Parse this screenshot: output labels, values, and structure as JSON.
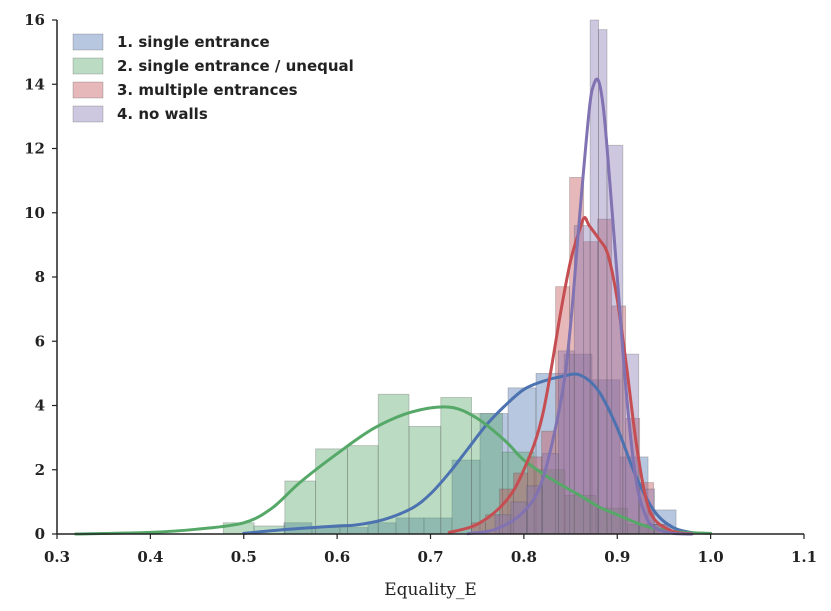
{
  "chart_data": {
    "type": "histogram+kde",
    "xlabel": "Equality_E",
    "ylabel": "",
    "xlim": [
      0.3,
      1.1
    ],
    "ylim": [
      0,
      16
    ],
    "xticks": [
      0.3,
      0.4,
      0.5,
      0.6,
      0.7,
      0.8,
      0.9,
      1.0,
      1.1
    ],
    "xtick_labels": [
      "0.3",
      "0.4",
      "0.5",
      "0.6",
      "0.7",
      "0.8",
      "0.9",
      "1.0",
      "1.1"
    ],
    "yticks": [
      0,
      2,
      4,
      6,
      8,
      10,
      12,
      14,
      16
    ],
    "ytick_labels": [
      "0",
      "2",
      "4",
      "6",
      "8",
      "10",
      "12",
      "14",
      "16"
    ],
    "grid": false,
    "legend_position": "top-left",
    "series": [
      {
        "name": "1. single entrance",
        "color": "#4c72b0",
        "bins": [
          {
            "x0": 0.543,
            "x1": 0.573,
            "h": 0.35
          },
          {
            "x0": 0.573,
            "x1": 0.603,
            "h": 0.2
          },
          {
            "x0": 0.603,
            "x1": 0.633,
            "h": 0.2
          },
          {
            "x0": 0.633,
            "x1": 0.663,
            "h": 0.35
          },
          {
            "x0": 0.663,
            "x1": 0.693,
            "h": 0.5
          },
          {
            "x0": 0.693,
            "x1": 0.723,
            "h": 0.5
          },
          {
            "x0": 0.723,
            "x1": 0.753,
            "h": 2.3
          },
          {
            "x0": 0.753,
            "x1": 0.783,
            "h": 3.75
          },
          {
            "x0": 0.783,
            "x1": 0.813,
            "h": 4.55
          },
          {
            "x0": 0.813,
            "x1": 0.843,
            "h": 5.0
          },
          {
            "x0": 0.843,
            "x1": 0.873,
            "h": 5.6
          },
          {
            "x0": 0.873,
            "x1": 0.903,
            "h": 4.8
          },
          {
            "x0": 0.903,
            "x1": 0.933,
            "h": 2.4
          },
          {
            "x0": 0.933,
            "x1": 0.963,
            "h": 0.75
          }
        ],
        "kde": {
          "x": [
            0.5,
            0.55,
            0.6,
            0.62,
            0.65,
            0.68,
            0.7,
            0.72,
            0.74,
            0.76,
            0.78,
            0.8,
            0.82,
            0.84,
            0.86,
            0.88,
            0.9,
            0.92,
            0.94,
            0.96,
            0.98
          ],
          "y": [
            0.02,
            0.15,
            0.25,
            0.28,
            0.45,
            0.8,
            1.25,
            1.9,
            2.65,
            3.4,
            4.0,
            4.5,
            4.75,
            4.9,
            4.95,
            4.45,
            3.3,
            1.8,
            0.7,
            0.2,
            0.04
          ]
        }
      },
      {
        "name": "2. single entrance / unequal",
        "color": "#55a868",
        "bins": [
          {
            "x0": 0.478,
            "x1": 0.511,
            "h": 0.35
          },
          {
            "x0": 0.511,
            "x1": 0.544,
            "h": 0.25
          },
          {
            "x0": 0.544,
            "x1": 0.577,
            "h": 1.65
          },
          {
            "x0": 0.577,
            "x1": 0.611,
            "h": 2.65
          },
          {
            "x0": 0.611,
            "x1": 0.644,
            "h": 2.75
          },
          {
            "x0": 0.644,
            "x1": 0.677,
            "h": 4.35
          },
          {
            "x0": 0.677,
            "x1": 0.711,
            "h": 3.35
          },
          {
            "x0": 0.711,
            "x1": 0.744,
            "h": 4.25
          },
          {
            "x0": 0.744,
            "x1": 0.777,
            "h": 3.75
          },
          {
            "x0": 0.777,
            "x1": 0.811,
            "h": 2.55
          },
          {
            "x0": 0.811,
            "x1": 0.844,
            "h": 2.0
          },
          {
            "x0": 0.844,
            "x1": 0.877,
            "h": 1.2
          },
          {
            "x0": 0.877,
            "x1": 0.911,
            "h": 0.8
          },
          {
            "x0": 0.911,
            "x1": 0.944,
            "h": 0.3
          }
        ],
        "kde": {
          "x": [
            0.32,
            0.4,
            0.45,
            0.5,
            0.53,
            0.56,
            0.6,
            0.64,
            0.68,
            0.72,
            0.75,
            0.78,
            0.8,
            0.83,
            0.86,
            0.88,
            0.9,
            0.93,
            0.96,
            1.0
          ],
          "y": [
            0.0,
            0.05,
            0.15,
            0.35,
            0.8,
            1.6,
            2.5,
            3.3,
            3.8,
            3.95,
            3.6,
            2.9,
            2.3,
            1.7,
            1.2,
            0.85,
            0.6,
            0.25,
            0.08,
            0.02
          ]
        }
      },
      {
        "name": "3. multiple entrances",
        "color": "#c44e52",
        "bins": [
          {
            "x0": 0.744,
            "x1": 0.759,
            "h": 0.35
          },
          {
            "x0": 0.759,
            "x1": 0.774,
            "h": 0.6
          },
          {
            "x0": 0.774,
            "x1": 0.789,
            "h": 1.4
          },
          {
            "x0": 0.789,
            "x1": 0.804,
            "h": 1.9
          },
          {
            "x0": 0.804,
            "x1": 0.819,
            "h": 2.4
          },
          {
            "x0": 0.819,
            "x1": 0.834,
            "h": 3.2
          },
          {
            "x0": 0.834,
            "x1": 0.849,
            "h": 7.7
          },
          {
            "x0": 0.849,
            "x1": 0.864,
            "h": 11.1
          },
          {
            "x0": 0.864,
            "x1": 0.879,
            "h": 9.1
          },
          {
            "x0": 0.879,
            "x1": 0.894,
            "h": 9.8
          },
          {
            "x0": 0.894,
            "x1": 0.909,
            "h": 7.1
          },
          {
            "x0": 0.909,
            "x1": 0.924,
            "h": 3.6
          },
          {
            "x0": 0.924,
            "x1": 0.939,
            "h": 1.6
          },
          {
            "x0": 0.939,
            "x1": 0.954,
            "h": 0.3
          }
        ],
        "kde": {
          "x": [
            0.72,
            0.75,
            0.78,
            0.8,
            0.82,
            0.84,
            0.85,
            0.86,
            0.865,
            0.87,
            0.88,
            0.89,
            0.9,
            0.91,
            0.92,
            0.93,
            0.94,
            0.96,
            0.98
          ],
          "y": [
            0.05,
            0.3,
            1.0,
            2.0,
            3.7,
            7.0,
            8.5,
            9.5,
            9.85,
            9.6,
            9.2,
            8.7,
            7.3,
            5.2,
            2.9,
            1.2,
            0.45,
            0.08,
            0.01
          ]
        }
      },
      {
        "name": "4. no walls",
        "color": "#8172b2",
        "bins": [
          {
            "x0": 0.769,
            "x1": 0.786,
            "h": 0.6
          },
          {
            "x0": 0.786,
            "x1": 0.803,
            "h": 1.0
          },
          {
            "x0": 0.803,
            "x1": 0.82,
            "h": 1.5
          },
          {
            "x0": 0.82,
            "x1": 0.837,
            "h": 2.5
          },
          {
            "x0": 0.837,
            "x1": 0.854,
            "h": 5.7
          },
          {
            "x0": 0.854,
            "x1": 0.871,
            "h": 9.6
          },
          {
            "x0": 0.871,
            "x1": 0.88,
            "h": 16.0
          },
          {
            "x0": 0.88,
            "x1": 0.889,
            "h": 15.7
          },
          {
            "x0": 0.889,
            "x1": 0.906,
            "h": 12.1
          },
          {
            "x0": 0.906,
            "x1": 0.923,
            "h": 5.6
          },
          {
            "x0": 0.923,
            "x1": 0.94,
            "h": 1.4
          },
          {
            "x0": 0.94,
            "x1": 0.957,
            "h": 0.3
          }
        ],
        "kde": {
          "x": [
            0.74,
            0.77,
            0.8,
            0.82,
            0.84,
            0.85,
            0.86,
            0.87,
            0.875,
            0.88,
            0.885,
            0.89,
            0.9,
            0.91,
            0.92,
            0.93,
            0.94,
            0.96,
            0.98
          ],
          "y": [
            0.01,
            0.15,
            0.7,
            1.7,
            4.2,
            6.5,
            10.0,
            13.2,
            14.0,
            14.1,
            13.3,
            11.7,
            8.0,
            4.3,
            1.7,
            0.6,
            0.2,
            0.02,
            0.0
          ]
        }
      }
    ]
  }
}
